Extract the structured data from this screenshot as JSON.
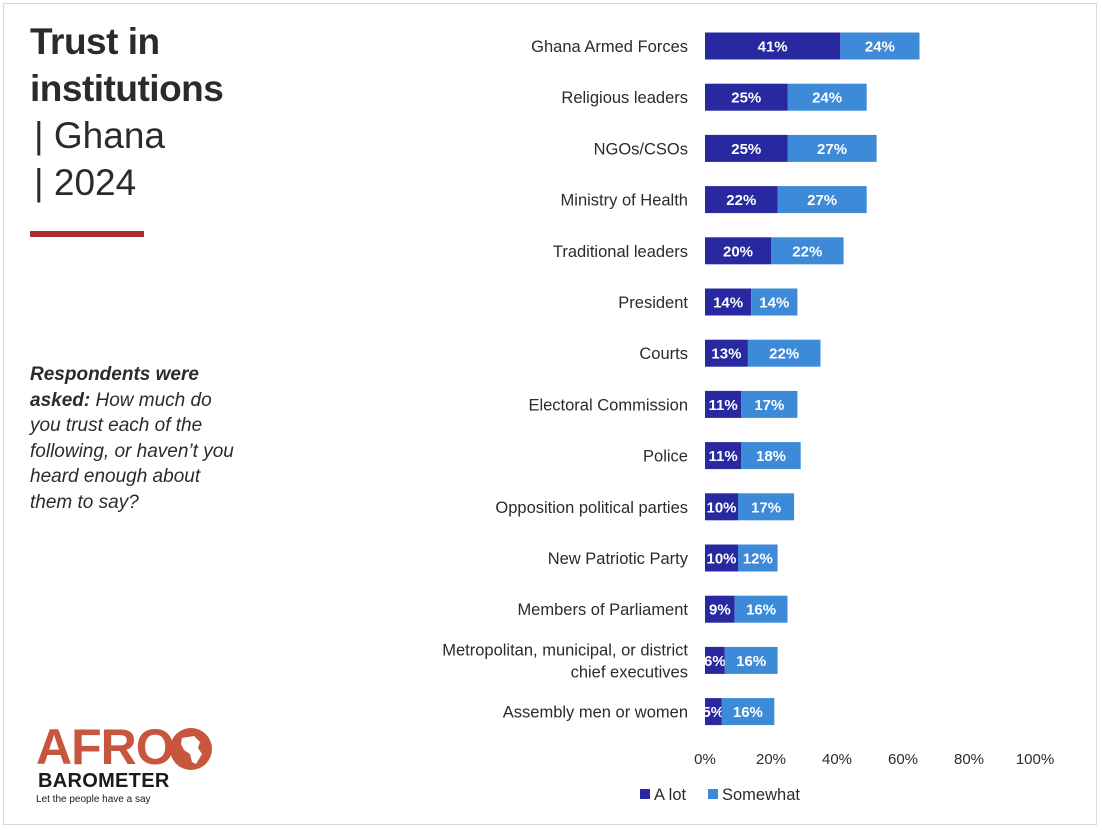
{
  "title": {
    "line1": "Trust in",
    "line2": "institutions",
    "line3": "| Ghana",
    "line4": "| 2024"
  },
  "question": {
    "lead": "Respondents were asked:",
    "text": " How much do you trust each of the following, or haven’t you heard enough about them to say?"
  },
  "logo": {
    "afro": "AFRO",
    "barometer": "BAROMETER",
    "tagline": "Let the people have a say"
  },
  "colors": {
    "a_lot": "#2828a0",
    "somewhat": "#3c8ad8",
    "accent": "#a9302b",
    "logo_red": "#c8553d"
  },
  "chart_data": {
    "type": "bar",
    "orientation": "horizontal",
    "stacked": true,
    "title": "Trust in institutions | Ghana | 2024",
    "categories": [
      "Ghana Armed Forces",
      "Religious leaders",
      "NGOs/CSOs",
      "Ministry of Health",
      "Traditional leaders",
      "President",
      "Courts",
      "Electoral Commission",
      "Police",
      "Opposition political parties",
      "New Patriotic Party",
      "Members of Parliament",
      "Metropolitan, municipal, or district chief executives",
      "Assembly men or women"
    ],
    "series": [
      {
        "name": "A lot",
        "color": "#2828a0",
        "values": [
          41,
          25,
          25,
          22,
          20,
          14,
          13,
          11,
          11,
          10,
          10,
          9,
          6,
          5
        ]
      },
      {
        "name": "Somewhat",
        "color": "#3c8ad8",
        "values": [
          24,
          24,
          27,
          27,
          22,
          14,
          22,
          17,
          18,
          17,
          12,
          16,
          16,
          16
        ]
      }
    ],
    "xlim": [
      0,
      100
    ],
    "xticks": [
      "0%",
      "20%",
      "40%",
      "60%",
      "80%",
      "100%"
    ],
    "legend": [
      "A lot",
      "Somewhat"
    ],
    "legend_position": "bottom",
    "grid": false
  }
}
